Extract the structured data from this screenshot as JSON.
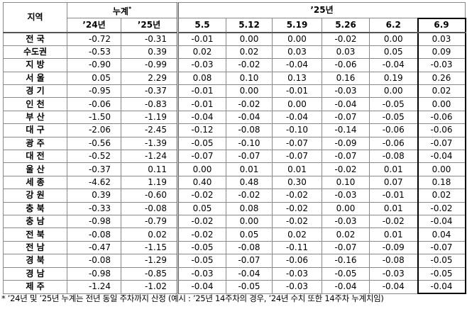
{
  "table": {
    "header": {
      "region": "지역",
      "cumulative": "누계",
      "cumulative_mark": "*",
      "year": "’25년",
      "columns": [
        "’24년",
        "’25년",
        "5.5",
        "5.12",
        "5.19",
        "5.26",
        "6.2",
        "6.9"
      ]
    },
    "rows": [
      [
        "전 국",
        "-0.72",
        "-0.31",
        "-0.01",
        "0.00",
        "0.00",
        "-0.02",
        "0.00",
        "0.03"
      ],
      [
        "수도권",
        "-0.53",
        "0.39",
        "0.02",
        "0.02",
        "0.03",
        "0.03",
        "0.05",
        "0.09"
      ],
      [
        "지 방",
        "-0.90",
        "-0.99",
        "-0.03",
        "-0.02",
        "-0.04",
        "-0.06",
        "-0.04",
        "-0.03"
      ],
      [
        "서 울",
        "0.05",
        "2.29",
        "0.08",
        "0.10",
        "0.13",
        "0.16",
        "0.19",
        "0.26"
      ],
      [
        "경 기",
        "-0.95",
        "-0.37",
        "-0.01",
        "0.00",
        "-0.01",
        "-0.03",
        "0.00",
        "0.02"
      ],
      [
        "인 천",
        "-0.06",
        "-0.83",
        "-0.01",
        "-0.02",
        "0.00",
        "-0.04",
        "-0.05",
        "0.00"
      ],
      [
        "부 산",
        "-1.50",
        "-1.19",
        "-0.04",
        "-0.04",
        "-0.04",
        "-0.07",
        "-0.05",
        "-0.06"
      ],
      [
        "대 구",
        "-2.06",
        "-2.45",
        "-0.12",
        "-0.08",
        "-0.10",
        "-0.14",
        "-0.06",
        "-0.06"
      ],
      [
        "광 주",
        "-0.56",
        "-1.39",
        "-0.05",
        "-0.10",
        "-0.07",
        "-0.09",
        "-0.06",
        "-0.07"
      ],
      [
        "대 전",
        "-0.52",
        "-1.24",
        "-0.07",
        "-0.07",
        "-0.07",
        "-0.07",
        "-0.08",
        "-0.04"
      ],
      [
        "울 산",
        "-0.37",
        "0.11",
        "0.00",
        "0.01",
        "0.01",
        "-0.02",
        "0.01",
        "0.00"
      ],
      [
        "세 종",
        "-4.62",
        "1.19",
        "0.40",
        "0.48",
        "0.30",
        "0.10",
        "0.07",
        "0.18"
      ],
      [
        "강 원",
        "0.39",
        "-0.60",
        "-0.02",
        "-0.02",
        "-0.02",
        "-0.03",
        "-0.01",
        "0.02"
      ],
      [
        "충 북",
        "-0.33",
        "-0.08",
        "0.05",
        "0.08",
        "-0.02",
        "0.00",
        "0.01",
        "-0.02"
      ],
      [
        "충 남",
        "-0.98",
        "-0.79",
        "-0.02",
        "0.00",
        "-0.02",
        "-0.03",
        "-0.02",
        "-0.04"
      ],
      [
        "전 북",
        "-0.08",
        "0.02",
        "-0.02",
        "0.05",
        "0.02",
        "0.02",
        "0.01",
        "0.04"
      ],
      [
        "전 남",
        "-0.47",
        "-1.15",
        "-0.05",
        "-0.08",
        "-0.11",
        "-0.07",
        "-0.09",
        "-0.07"
      ],
      [
        "경 북",
        "-0.08",
        "-1.29",
        "-0.05",
        "-0.07",
        "-0.06",
        "-0.16",
        "-0.08",
        "-0.05"
      ],
      [
        "경 남",
        "-0.98",
        "-0.85",
        "-0.03",
        "-0.04",
        "-0.03",
        "-0.05",
        "-0.03",
        "-0.05"
      ],
      [
        "제 주",
        "-1.24",
        "-1.02",
        "-0.04",
        "-0.05",
        "-0.03",
        "-0.04",
        "-0.04",
        "-0.04"
      ]
    ]
  },
  "footnote": "* ’24년 및 ’25년 누계는 전년 동일 주차까지 산정 (예시 : ’25년 14주차의 경우, ’24년 수치 또한 14주차 누계치임)"
}
